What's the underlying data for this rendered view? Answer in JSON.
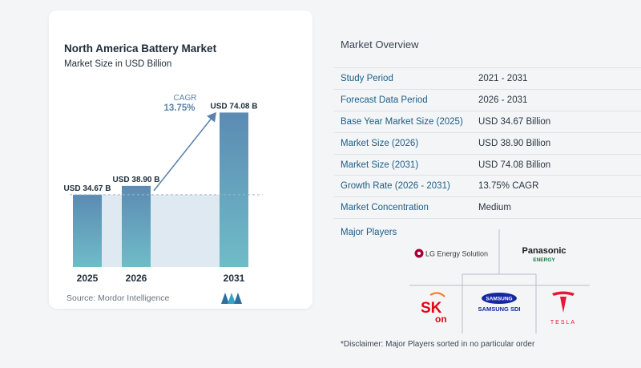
{
  "chart_data": {
    "type": "bar",
    "title": "North America Battery Market",
    "subtitle": "Market Size in USD Billion",
    "categories": [
      "2025",
      "2026",
      "2031"
    ],
    "values": [
      34.67,
      38.9,
      74.08
    ],
    "data_labels": [
      "USD 34.67 B",
      "USD 38.90 B",
      "USD 74.08 B"
    ],
    "annotation": {
      "label": "CAGR",
      "value": "13.75%"
    },
    "ylim": [
      0,
      80
    ],
    "grid": false,
    "colors": {
      "bar_top": "#5c8bb3",
      "bar_bottom": "#6fbcc8",
      "band": "#dfe9f1",
      "arrow": "#5a84ab",
      "cagr": "#5a84ab"
    }
  },
  "source": "Source:  Mordor Intelligence",
  "overview": {
    "title": "Market Overview",
    "rows": [
      {
        "key": "Study Period",
        "value": "2021 - 2031"
      },
      {
        "key": "Forecast Data Period",
        "value": "2026 - 2031"
      },
      {
        "key": "Base Year Market Size (2025)",
        "value": "USD 34.67 Billion"
      },
      {
        "key": "Market Size (2026)",
        "value": "USD 38.90 Billion"
      },
      {
        "key": "Market Size (2031)",
        "value": "USD 74.08 Billion"
      },
      {
        "key": "Growth Rate (2026 - 2031)",
        "value": "13.75% CAGR"
      },
      {
        "key": "Market Concentration",
        "value": "Medium"
      }
    ]
  },
  "players": {
    "title": "Major Players",
    "lg": "LG Energy Solution",
    "panasonic": "Panasonic",
    "panasonic_sub": "ENERGY",
    "sk": "SK",
    "sk_sub": "on",
    "samsung": "SAMSUNG",
    "samsung_sub": "SAMSUNG SDI",
    "tesla": "TESLA"
  },
  "disclaimer": "*Disclaimer: Major Players sorted in no particular order"
}
